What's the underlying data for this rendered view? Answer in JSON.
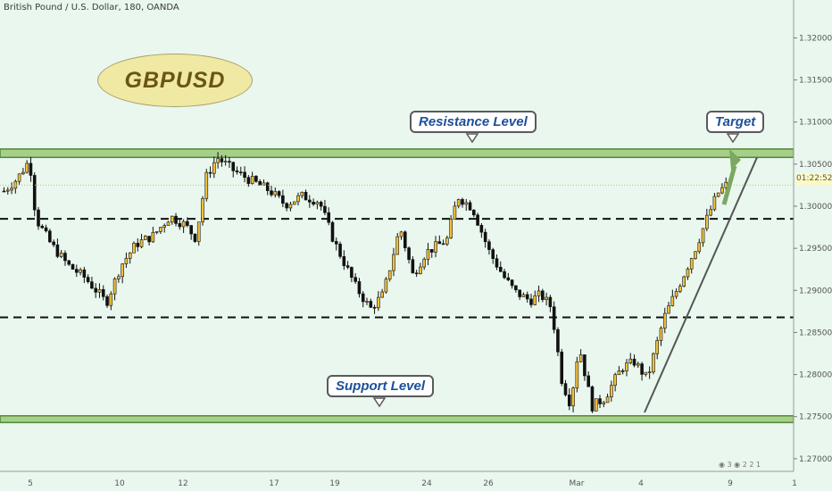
{
  "header": {
    "symbol_line": "British Pound / U.S. Dollar, 180, OANDA"
  },
  "badge": {
    "label": "GBPUSD"
  },
  "callouts": {
    "resistance": "Resistance Level",
    "support": "Support Level",
    "target": "Target"
  },
  "price_axis": {
    "labels": [
      "1.32000",
      "1.31500",
      "1.31000",
      "1.30500",
      "1.30000",
      "1.29500",
      "1.29000",
      "1.28500",
      "1.28000",
      "1.27500",
      "1.27000"
    ],
    "countdown": "01:22:52"
  },
  "time_axis": {
    "labels": [
      "5",
      "10",
      "12",
      "17",
      "19",
      "24",
      "26",
      "Mar",
      "4",
      "9",
      "1"
    ]
  },
  "colors": {
    "background": "#e9f7ee",
    "bull_candle": "#f2c13c",
    "bear_candle": "#111111",
    "zone_fill": "#a7cf88",
    "arrow": "#7aa860"
  },
  "bottom_icons": [
    "flag-icon",
    "3",
    "flag-icon",
    "2",
    "2",
    "1"
  ],
  "chart_data": {
    "type": "candlestick",
    "title": "British Pound / U.S. Dollar, 180, OANDA",
    "ylim": [
      1.2685,
      1.3245
    ],
    "y_ticks": [
      1.32,
      1.315,
      1.31,
      1.305,
      1.3,
      1.295,
      1.29,
      1.285,
      1.28,
      1.275,
      1.27
    ],
    "x_tick_labels": [
      "5",
      "10",
      "12",
      "17",
      "19",
      "24",
      "26",
      "Mar",
      "4",
      "9",
      "1"
    ],
    "candle_count": 190,
    "close_path": [
      [
        0,
        1.3018
      ],
      [
        6,
        1.3032
      ],
      [
        12,
        1.3055
      ],
      [
        15,
        1.2985
      ],
      [
        22,
        1.2955
      ],
      [
        30,
        1.293
      ],
      [
        38,
        1.2915
      ],
      [
        45,
        1.2895
      ],
      [
        48,
        1.2885
      ],
      [
        55,
        1.293
      ],
      [
        62,
        1.2955
      ],
      [
        70,
        1.2965
      ],
      [
        78,
        1.2988
      ],
      [
        85,
        1.2978
      ],
      [
        90,
        1.2962
      ],
      [
        95,
        1.3035
      ],
      [
        100,
        1.3058
      ],
      [
        108,
        1.3042
      ],
      [
        115,
        1.3032
      ],
      [
        125,
        1.3018
      ],
      [
        132,
        1.3002
      ],
      [
        140,
        1.3012
      ],
      [
        148,
        1.3006
      ],
      [
        155,
        1.2958
      ],
      [
        165,
        1.2905
      ],
      [
        172,
        1.2878
      ],
      [
        178,
        1.2895
      ],
      [
        186,
        1.2975
      ],
      [
        192,
        1.2918
      ],
      [
        198,
        1.2945
      ],
      [
        208,
        1.296
      ],
      [
        213,
        1.3012
      ],
      [
        220,
        1.2998
      ],
      [
        228,
        1.2945
      ],
      [
        235,
        1.2915
      ],
      [
        240,
        1.2898
      ],
      [
        247,
        1.2888
      ],
      [
        252,
        1.2895
      ],
      [
        257,
        1.288
      ],
      [
        262,
        1.2792
      ],
      [
        266,
        1.2765
      ],
      [
        270,
        1.2835
      ],
      [
        276,
        1.2762
      ],
      [
        282,
        1.2772
      ],
      [
        290,
        1.2808
      ],
      [
        296,
        1.2815
      ],
      [
        302,
        1.2795
      ],
      [
        310,
        1.2868
      ],
      [
        318,
        1.2912
      ],
      [
        325,
        1.2952
      ],
      [
        330,
        1.2985
      ],
      [
        335,
        1.3015
      ],
      [
        339,
        1.3025
      ]
    ],
    "levels": [
      {
        "label": "Resistance Level",
        "kind": "zone",
        "from": 1.3058,
        "to": 1.3068
      },
      {
        "label": "Support Level",
        "kind": "zone",
        "from": 1.2743,
        "to": 1.2751
      },
      {
        "kind": "dashed",
        "value": 1.2985
      },
      {
        "kind": "dashed",
        "value": 1.2868
      }
    ],
    "current_price_line": 1.3025,
    "trendline": [
      [
        1.2755
      ],
      [
        1.3058
      ]
    ],
    "grid": false
  }
}
